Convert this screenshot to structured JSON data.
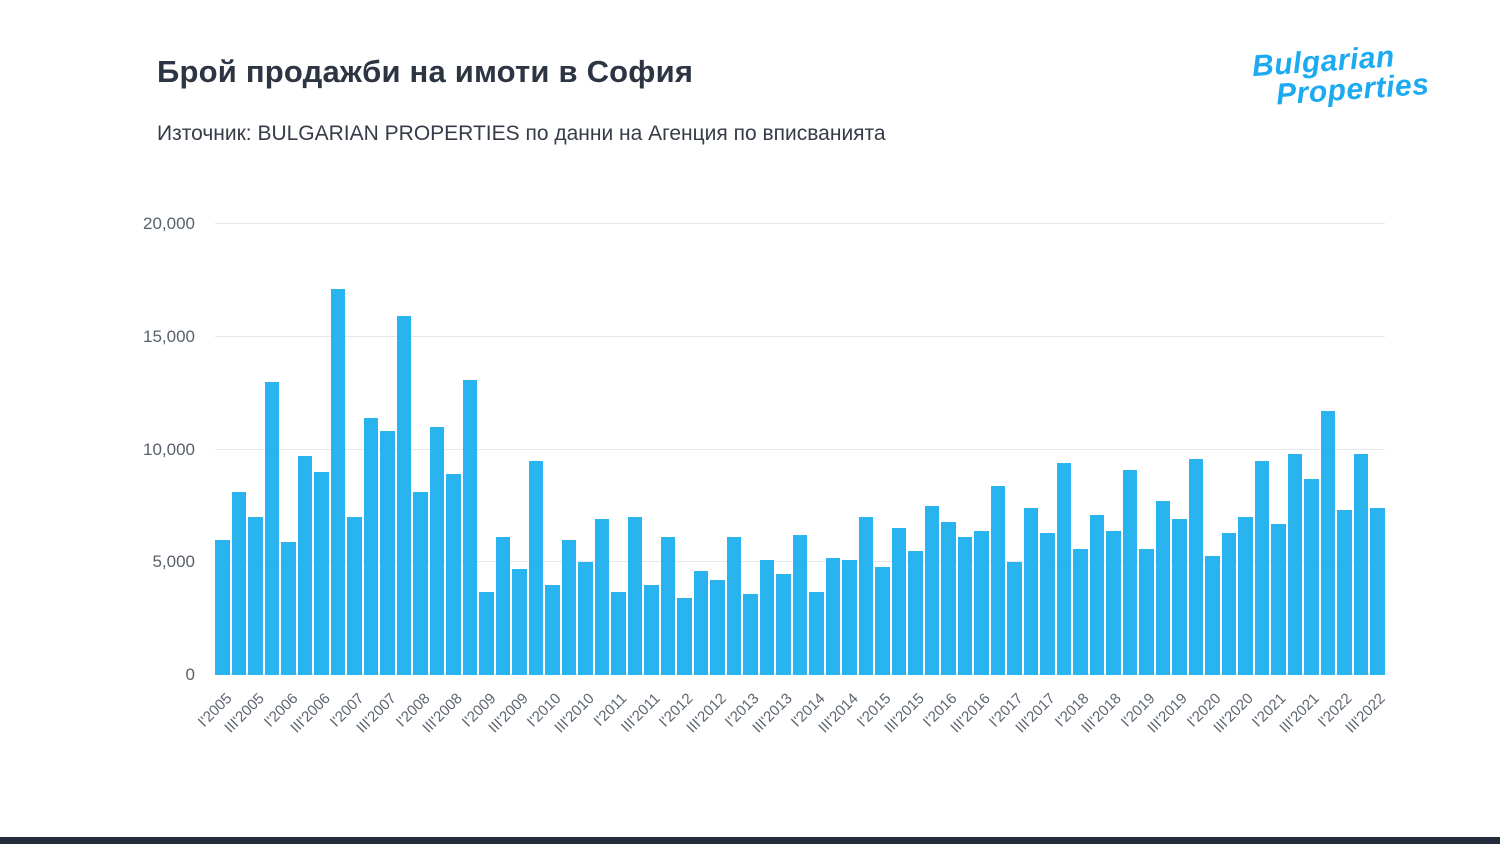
{
  "page": {
    "title": "Брой продажби на имоти в София",
    "subtitle": "Източник: BULGARIAN PROPERTIES по данни на Агенция по вписванията",
    "logo": {
      "line1": "Bulgarian",
      "line2": "Properties",
      "color": "#1caaf1"
    }
  },
  "chart_data": {
    "type": "bar",
    "title": "Брой продажби на имоти в София",
    "xlabel": "",
    "ylabel": "",
    "ylim": [
      0,
      20000
    ],
    "grid": true,
    "legend": "none",
    "bar_color": "#29b4f0",
    "yticks": [
      0,
      5000,
      10000,
      15000,
      20000
    ],
    "ytick_labels": [
      "0",
      "5,000",
      "10,000",
      "15,000",
      "20,000"
    ],
    "xtick_every": 2,
    "categories": [
      "I'2005",
      "II'2005",
      "III'2005",
      "IV'2005",
      "I'2006",
      "II'2006",
      "III'2006",
      "IV'2006",
      "I'2007",
      "II'2007",
      "III'2007",
      "IV'2007",
      "I'2008",
      "II'2008",
      "III'2008",
      "IV'2008",
      "I'2009",
      "II'2009",
      "III'2009",
      "IV'2009",
      "I'2010",
      "II'2010",
      "III'2010",
      "IV'2010",
      "I'2011",
      "II'2011",
      "III'2011",
      "IV'2011",
      "I'2012",
      "II'2012",
      "III'2012",
      "IV'2012",
      "I'2013",
      "II'2013",
      "III'2013",
      "IV'2013",
      "I'2014",
      "II'2014",
      "III'2014",
      "IV'2014",
      "I'2015",
      "II'2015",
      "III'2015",
      "IV'2015",
      "I'2016",
      "II'2016",
      "III'2016",
      "IV'2016",
      "I'2017",
      "II'2017",
      "III'2017",
      "IV'2017",
      "I'2018",
      "II'2018",
      "III'2018",
      "IV'2018",
      "I'2019",
      "II'2019",
      "III'2019",
      "IV'2019",
      "I'2020",
      "II'2020",
      "III'2020",
      "IV'2020",
      "I'2021",
      "II'2021",
      "III'2021",
      "IV'2021",
      "I'2022",
      "II'2022",
      "III'2022"
    ],
    "values": [
      6000,
      8100,
      7000,
      13000,
      5900,
      9700,
      9000,
      17100,
      7000,
      11400,
      10800,
      15900,
      8100,
      11000,
      8900,
      13100,
      3700,
      6100,
      4700,
      9500,
      4000,
      6000,
      5000,
      6900,
      3700,
      7000,
      4000,
      6100,
      3400,
      4600,
      4200,
      6100,
      3600,
      5100,
      4500,
      6200,
      3700,
      5200,
      5100,
      7000,
      4800,
      6500,
      5500,
      7500,
      6800,
      6100,
      6400,
      8400,
      5000,
      7400,
      6300,
      9400,
      5600,
      7100,
      6400,
      9100,
      5600,
      7700,
      6900,
      9600,
      5300,
      6300,
      7000,
      9500,
      6700,
      9800,
      8700,
      11700,
      7300,
      9800,
      7400
    ]
  }
}
